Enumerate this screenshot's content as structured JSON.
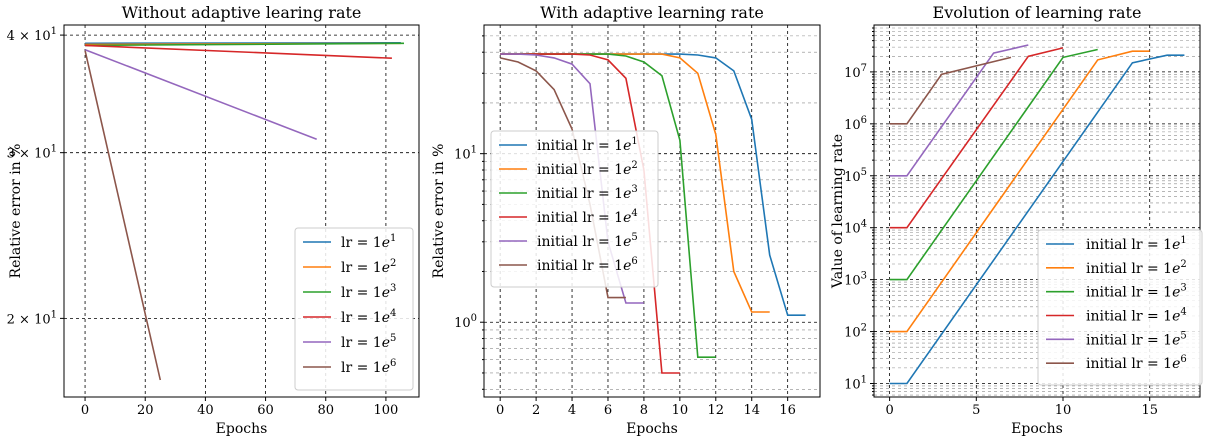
{
  "colors": [
    "#1f77b4",
    "#ff7f0e",
    "#2ca02c",
    "#d62728",
    "#9467bd",
    "#8c564b"
  ],
  "chart_data": [
    {
      "type": "line",
      "title": "Without adaptive learing rate",
      "xlabel": "Epochs",
      "ylabel": "Relative error in %",
      "xlim": [
        -7,
        111
      ],
      "ylim": [
        16.5,
        41
      ],
      "yscale": "log",
      "grid": true,
      "legend": "lower right",
      "xticks": [
        0,
        20,
        40,
        60,
        80,
        100
      ],
      "yticks": [
        {
          "value": 20,
          "base": "2 × 10",
          "exp": "1"
        },
        {
          "value": 30,
          "base": "3 × 10",
          "exp": "1"
        },
        {
          "value": 40,
          "base": "4 × 10",
          "exp": "1"
        }
      ],
      "series": [
        {
          "name_base": "lr = 1",
          "name_exp": "1",
          "x": [
            0,
            105
          ],
          "y": [
            39.2,
            39.25
          ]
        },
        {
          "name_base": "lr = 1",
          "name_exp": "2",
          "x": [
            0,
            105
          ],
          "y": [
            39.1,
            39.2
          ]
        },
        {
          "name_base": "lr = 1",
          "name_exp": "3",
          "x": [
            0,
            106
          ],
          "y": [
            39.0,
            39.2
          ]
        },
        {
          "name_base": "lr = 1",
          "name_exp": "4",
          "x": [
            0,
            102
          ],
          "y": [
            39.0,
            37.8
          ]
        },
        {
          "name_base": "lr = 1",
          "name_exp": "5",
          "x": [
            0,
            77
          ],
          "y": [
            38.6,
            31.0
          ]
        },
        {
          "name_base": "lr = 1",
          "name_exp": "6",
          "x": [
            0,
            25
          ],
          "y": [
            38.5,
            17.2
          ]
        }
      ]
    },
    {
      "type": "line",
      "title": "With adaptive learning rate",
      "xlabel": "Epochs",
      "ylabel": "Relative error in %",
      "xlim": [
        -0.9,
        17.8
      ],
      "ylim": [
        0.36,
        58
      ],
      "yscale": "log",
      "grid": true,
      "legend": "center left",
      "xticks": [
        0,
        2,
        4,
        6,
        8,
        10,
        12,
        14,
        16
      ],
      "yticks": [
        {
          "value": 1,
          "base": "10",
          "exp": "0"
        },
        {
          "value": 10,
          "base": "10",
          "exp": "1"
        }
      ],
      "series": [
        {
          "name_base": "initial lr = 1",
          "name_exp": "1",
          "x": [
            0,
            1,
            2,
            3,
            4,
            5,
            6,
            7,
            8,
            9,
            10,
            11,
            12,
            13,
            14,
            15,
            16,
            17
          ],
          "y": [
            39,
            39,
            39,
            39,
            39,
            39,
            39,
            39,
            39,
            39,
            39,
            38.5,
            37,
            31,
            16,
            2.5,
            1.1,
            1.1
          ]
        },
        {
          "name_base": "initial lr = 1",
          "name_exp": "2",
          "x": [
            0,
            1,
            2,
            3,
            4,
            5,
            6,
            7,
            8,
            9,
            10,
            11,
            12,
            13,
            14,
            15
          ],
          "y": [
            39,
            39,
            39,
            39,
            39,
            39,
            39,
            39,
            39,
            39,
            37,
            30,
            13,
            2.0,
            1.15,
            1.15
          ]
        },
        {
          "name_base": "initial lr = 1",
          "name_exp": "3",
          "x": [
            0,
            1,
            2,
            3,
            4,
            5,
            6,
            7,
            8,
            9,
            10,
            11,
            12
          ],
          "y": [
            39,
            39,
            39,
            39,
            39,
            39,
            39,
            38,
            35,
            29,
            12,
            0.62,
            0.62
          ]
        },
        {
          "name_base": "initial lr = 1",
          "name_exp": "4",
          "x": [
            0,
            1,
            2,
            3,
            4,
            5,
            6,
            7,
            8,
            9,
            10
          ],
          "y": [
            39,
            39,
            39,
            39,
            39,
            38.5,
            36,
            28,
            8,
            0.5,
            0.5
          ]
        },
        {
          "name_base": "initial lr = 1",
          "name_exp": "5",
          "x": [
            0,
            1,
            2,
            3,
            4,
            5,
            6,
            7,
            8
          ],
          "y": [
            39,
            39,
            38.5,
            37,
            34,
            26,
            3.0,
            1.3,
            1.3
          ]
        },
        {
          "name_base": "initial lr = 1",
          "name_exp": "6",
          "x": [
            0,
            1,
            2,
            3,
            4,
            5,
            6,
            7
          ],
          "y": [
            37,
            35,
            31,
            24,
            14,
            5.0,
            1.4,
            1.4
          ]
        }
      ]
    },
    {
      "type": "line",
      "title": "Evolution of learning rate",
      "xlabel": "Epochs",
      "ylabel": "Value of learning rate",
      "xlim": [
        -0.9,
        17.9
      ],
      "ylim": [
        5.5,
        80000000
      ],
      "yscale": "log",
      "grid": true,
      "legend": "lower right",
      "xticks": [
        0,
        5,
        10,
        15
      ],
      "yticks": [
        {
          "value": 10,
          "base": "10",
          "exp": "1"
        },
        {
          "value": 100,
          "base": "10",
          "exp": "2"
        },
        {
          "value": 1000,
          "base": "10",
          "exp": "3"
        },
        {
          "value": 10000,
          "base": "10",
          "exp": "4"
        },
        {
          "value": 100000,
          "base": "10",
          "exp": "5"
        },
        {
          "value": 1000000,
          "base": "10",
          "exp": "6"
        },
        {
          "value": 10000000,
          "base": "10",
          "exp": "7"
        }
      ],
      "series": [
        {
          "name_base": "initial lr = 1",
          "name_exp": "1",
          "x": [
            0,
            1,
            14,
            16,
            17
          ],
          "y": [
            10,
            10,
            15000000,
            21000000,
            21000000
          ]
        },
        {
          "name_base": "initial lr = 1",
          "name_exp": "2",
          "x": [
            0,
            1,
            12,
            14,
            15
          ],
          "y": [
            100,
            100,
            17000000,
            25000000,
            25000000
          ]
        },
        {
          "name_base": "initial lr = 1",
          "name_exp": "3",
          "x": [
            0,
            1,
            10,
            12
          ],
          "y": [
            1000,
            1000,
            19000000,
            27000000
          ]
        },
        {
          "name_base": "initial lr = 1",
          "name_exp": "4",
          "x": [
            0,
            1,
            8,
            10
          ],
          "y": [
            10000,
            10000,
            20000000,
            29000000
          ]
        },
        {
          "name_base": "initial lr = 1",
          "name_exp": "5",
          "x": [
            0,
            1,
            6,
            8
          ],
          "y": [
            100000,
            100000,
            23000000,
            33000000
          ]
        },
        {
          "name_base": "initial lr = 1",
          "name_exp": "6",
          "x": [
            0,
            1,
            3,
            7
          ],
          "y": [
            1000000,
            1000000,
            9000000,
            19000000
          ]
        }
      ]
    }
  ]
}
